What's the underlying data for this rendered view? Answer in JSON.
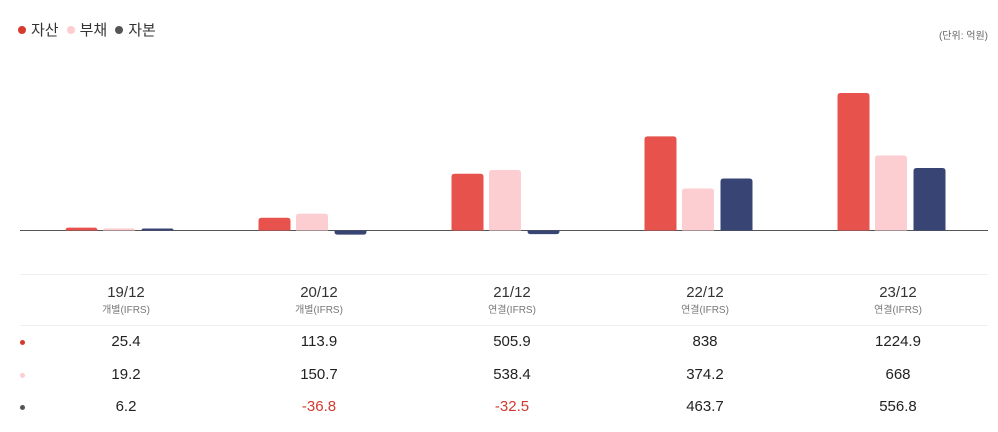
{
  "legend": [
    {
      "label": "자산",
      "color": "#e8524c",
      "dot_color": "#d63a2c"
    },
    {
      "label": "부채",
      "color": "#fccdd1",
      "dot_color": "#fccdd1"
    },
    {
      "label": "자본",
      "color": "#384574",
      "dot_color": "#555555"
    }
  ],
  "unit_label": "(단위: 억원)",
  "chart_data": {
    "type": "bar",
    "categories": [
      "19/12",
      "20/12",
      "21/12",
      "22/12",
      "23/12"
    ],
    "bases": [
      "개별(IFRS)",
      "개별(IFRS)",
      "연결(IFRS)",
      "연결(IFRS)",
      "연결(IFRS)"
    ],
    "series": [
      {
        "name": "자산",
        "values": [
          25.4,
          113.9,
          505.9,
          838,
          1224.9
        ],
        "labels": [
          "25.4",
          "113.9",
          "505.9",
          "838",
          "1224.9"
        ]
      },
      {
        "name": "부채",
        "values": [
          19.2,
          150.7,
          538.4,
          374.2,
          668
        ],
        "labels": [
          "19.2",
          "150.7",
          "538.4",
          "374.2",
          "668"
        ]
      },
      {
        "name": "자본",
        "values": [
          6.2,
          -36.8,
          -32.5,
          463.7,
          556.8
        ],
        "labels": [
          "6.2",
          "-36.8",
          "-32.5",
          "463.7",
          "556.8"
        ]
      }
    ],
    "ylim": [
      -49,
      1224.9
    ]
  }
}
